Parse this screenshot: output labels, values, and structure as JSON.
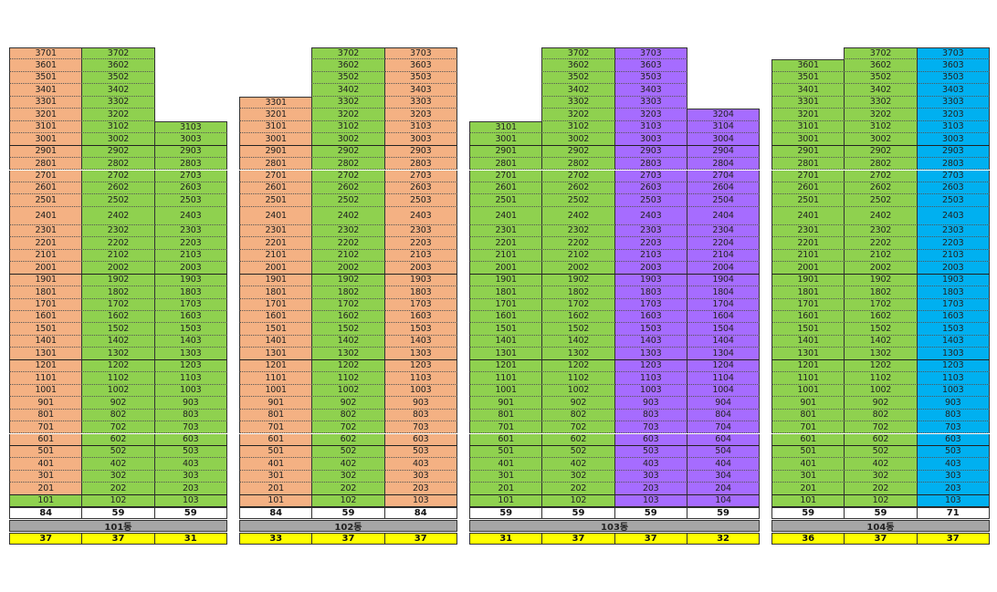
{
  "colors": {
    "orange": "#f4b183",
    "green": "#8fd14f",
    "purple": "#a66cff",
    "cyan": "#00b0f0",
    "white": "#ffffff",
    "yellow": "#ffff00",
    "gray": "#a6a6a6"
  },
  "floors": [
    37,
    36,
    35,
    34,
    33,
    32,
    31,
    30,
    29,
    28,
    27,
    26,
    25,
    24,
    23,
    22,
    21,
    20,
    19,
    18,
    17,
    16,
    15,
    14,
    13,
    12,
    11,
    10,
    9,
    8,
    7,
    6,
    5,
    4,
    3,
    2,
    1
  ],
  "buildings": [
    {
      "name": "101동",
      "columns": [
        {
          "line": 1,
          "top_floor": 37,
          "color": "orange",
          "bottom_color": "green",
          "unit_size": "84",
          "count": "37"
        },
        {
          "line": 2,
          "top_floor": 37,
          "color": "green",
          "bottom_color": "green",
          "unit_size": "59",
          "count": "37"
        },
        {
          "line": 3,
          "top_floor": 31,
          "color": "green",
          "bottom_color": "green",
          "unit_size": "59",
          "count": "31"
        }
      ]
    },
    {
      "name": "102동",
      "columns": [
        {
          "line": 1,
          "top_floor": 33,
          "color": "orange",
          "bottom_color": "orange",
          "unit_size": "84",
          "count": "33"
        },
        {
          "line": 2,
          "top_floor": 37,
          "color": "green",
          "bottom_color": "green",
          "unit_size": "59",
          "count": "37"
        },
        {
          "line": 3,
          "top_floor": 37,
          "color": "orange",
          "bottom_color": "orange",
          "unit_size": "84",
          "count": "37"
        }
      ]
    },
    {
      "name": "103동",
      "columns": [
        {
          "line": 1,
          "top_floor": 31,
          "color": "green",
          "bottom_color": "green",
          "unit_size": "59",
          "count": "31"
        },
        {
          "line": 2,
          "top_floor": 37,
          "color": "green",
          "bottom_color": "green",
          "unit_size": "59",
          "count": "37"
        },
        {
          "line": 3,
          "top_floor": 37,
          "color": "purple",
          "bottom_color": "purple",
          "unit_size": "59",
          "count": "37"
        },
        {
          "line": 4,
          "top_floor": 32,
          "color": "purple",
          "bottom_color": "purple",
          "unit_size": "59",
          "count": "32"
        }
      ]
    },
    {
      "name": "104동",
      "columns": [
        {
          "line": 1,
          "top_floor": 36,
          "color": "green",
          "bottom_color": "green",
          "unit_size": "59",
          "count": "36"
        },
        {
          "line": 2,
          "top_floor": 37,
          "color": "green",
          "bottom_color": "green",
          "unit_size": "59",
          "count": "37"
        },
        {
          "line": 3,
          "top_floor": 37,
          "color": "cyan",
          "bottom_color": "cyan",
          "unit_size": "71",
          "count": "37"
        }
      ]
    }
  ]
}
